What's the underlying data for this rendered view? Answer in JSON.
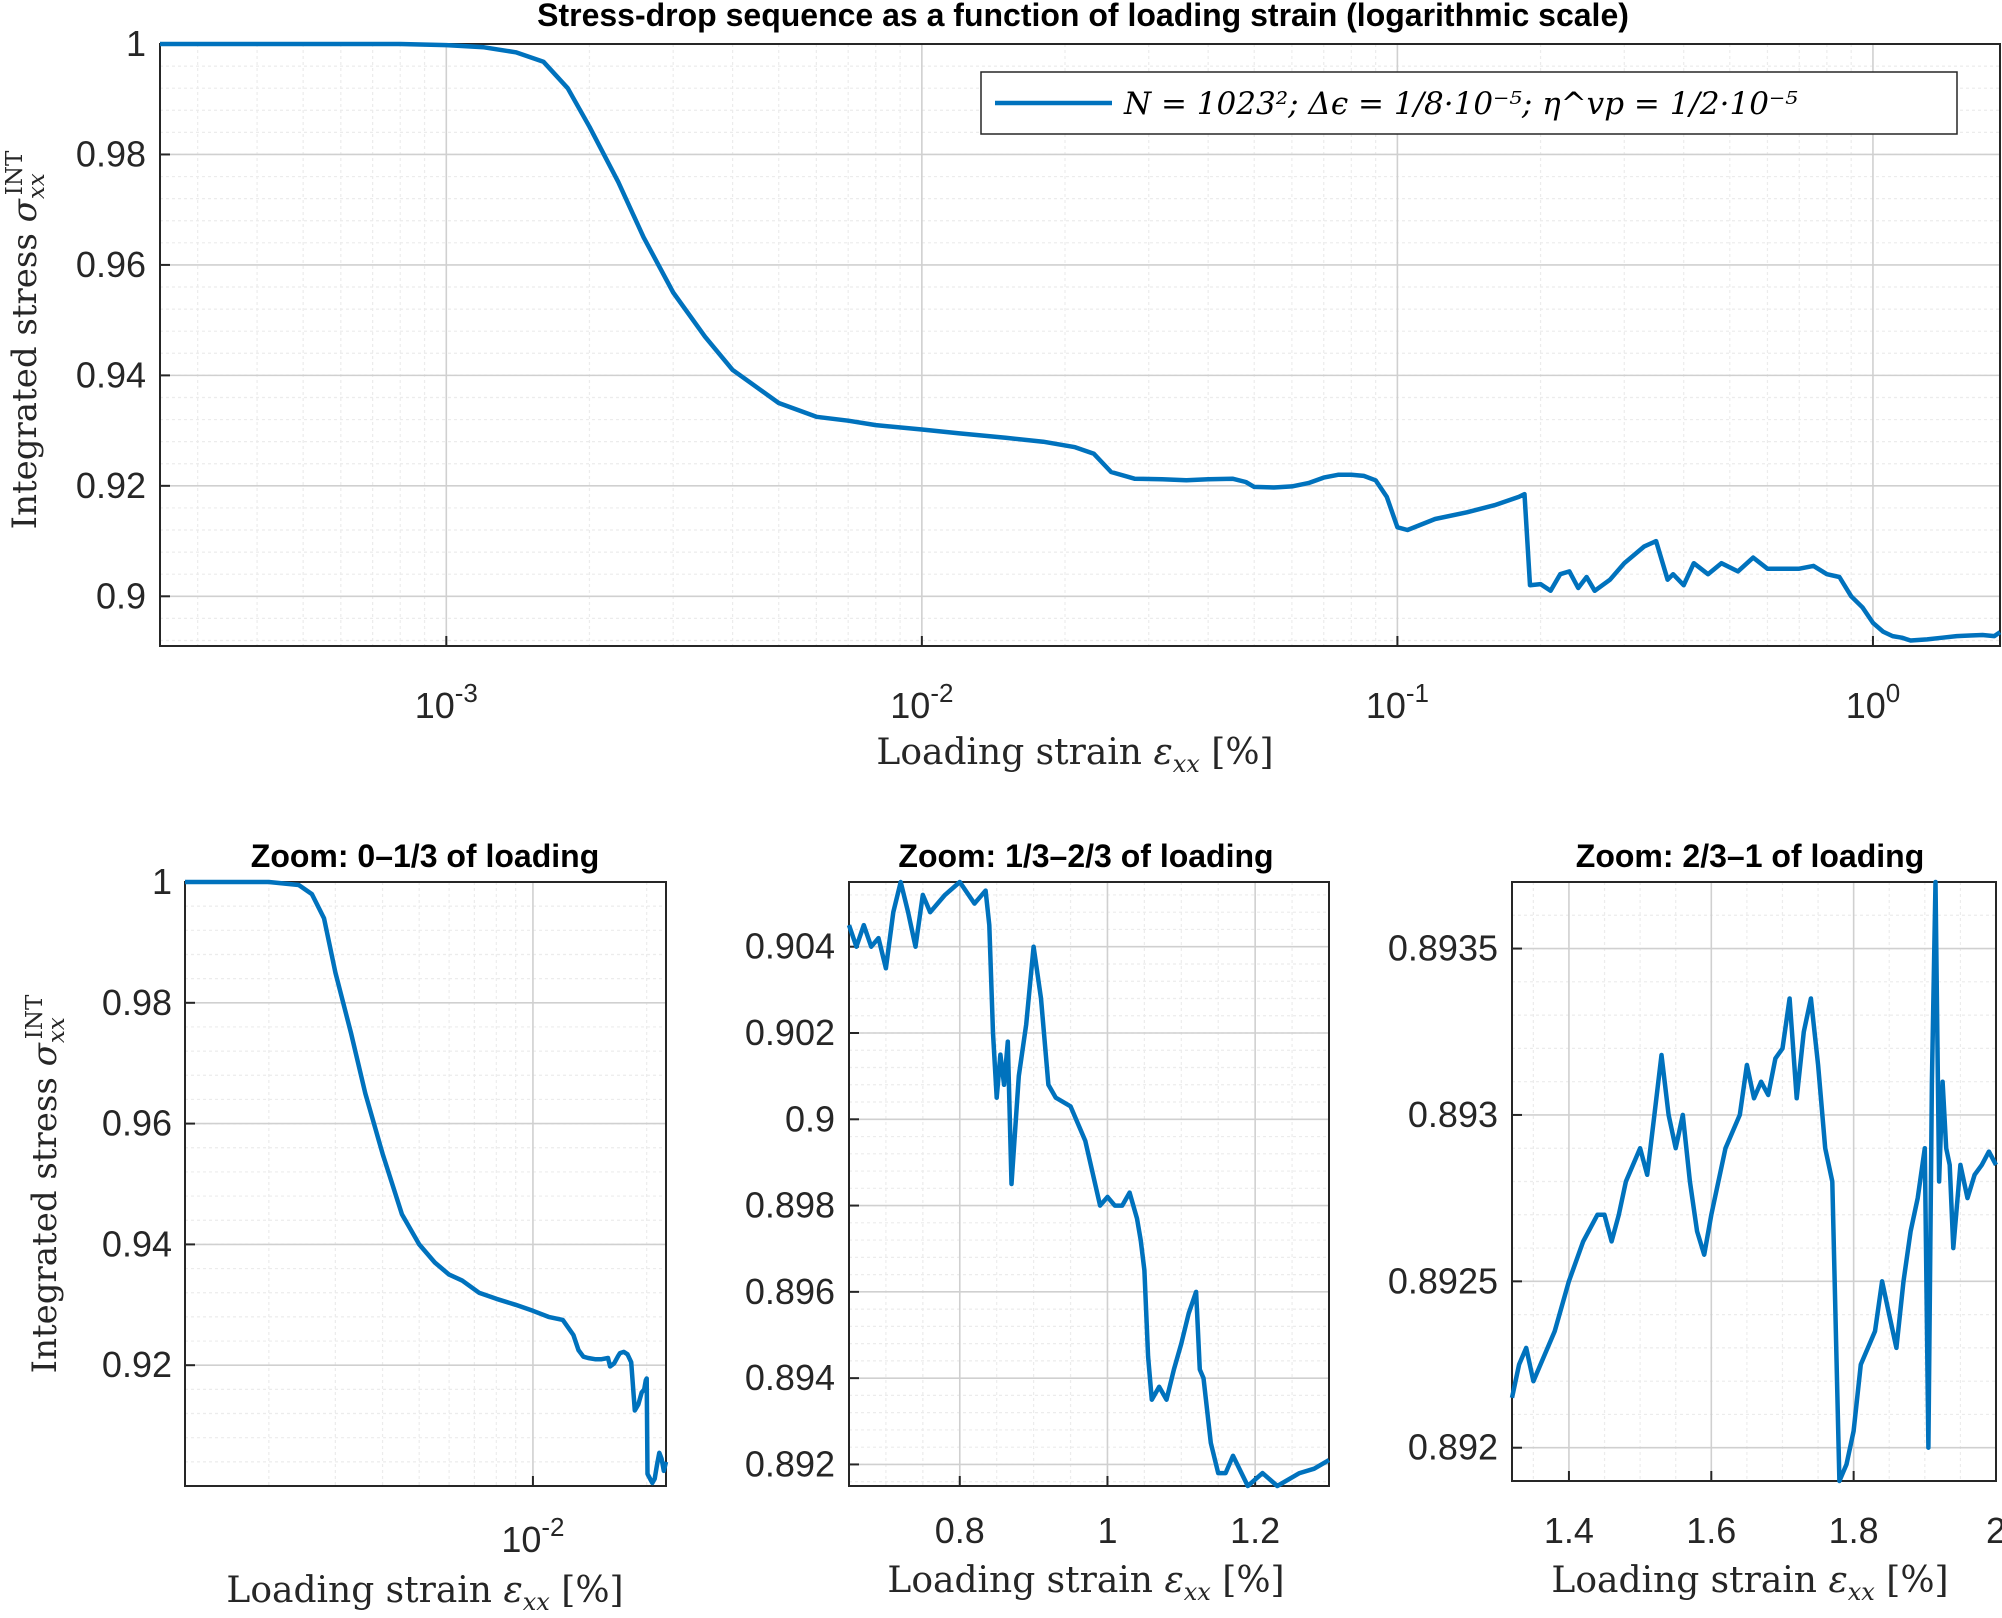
{
  "colors": {
    "line": "#0072BD",
    "axis": "#262626",
    "grid": "#d0d0d0"
  },
  "chart_data": [
    {
      "id": "main",
      "type": "line",
      "title": "Stress-drop sequence as a function of loading strain (logarithmic scale)",
      "xlabel": "Loading strain ε_xx [%]",
      "ylabel": "Integrated stress σ_xx^INT",
      "xscale": "log",
      "xlim": [
        0.00025,
        1.85
      ],
      "ylim": [
        0.891,
        1.0
      ],
      "grid": true,
      "legend_placement": "top-right",
      "xticks": [
        0.001,
        0.01,
        0.1,
        1
      ],
      "xtick_labels": [
        "10-3",
        "10-2",
        "10-1",
        "100"
      ],
      "yticks": [
        0.9,
        0.92,
        0.94,
        0.96,
        0.98,
        1
      ],
      "ytick_labels": [
        "0.9",
        "0.92",
        "0.94",
        "0.96",
        "0.98",
        "1"
      ],
      "series": [
        {
          "name": "N = 1023²; Δϵ = 1/8·10⁻⁵; η^vp = 1/2·10⁻⁵",
          "x": [
            0.00025,
            0.0005,
            0.0008,
            0.001,
            0.0012,
            0.0014,
            0.0016,
            0.0018,
            0.002,
            0.0023,
            0.0026,
            0.003,
            0.0035,
            0.004,
            0.005,
            0.006,
            0.007,
            0.008,
            0.01,
            0.012,
            0.015,
            0.018,
            0.021,
            0.023,
            0.025,
            0.028,
            0.032,
            0.036,
            0.04,
            0.045,
            0.048,
            0.05,
            0.055,
            0.06,
            0.065,
            0.07,
            0.075,
            0.08,
            0.085,
            0.09,
            0.095,
            0.1,
            0.105,
            0.12,
            0.14,
            0.16,
            0.18,
            0.185,
            0.19,
            0.2,
            0.21,
            0.22,
            0.23,
            0.24,
            0.25,
            0.26,
            0.28,
            0.3,
            0.33,
            0.35,
            0.37,
            0.38,
            0.4,
            0.42,
            0.45,
            0.48,
            0.52,
            0.56,
            0.6,
            0.65,
            0.7,
            0.75,
            0.8,
            0.85,
            0.9,
            0.95,
            1.0,
            1.05,
            1.1,
            1.15,
            1.2,
            1.3,
            1.4,
            1.5,
            1.6,
            1.7,
            1.8,
            1.85
          ],
          "y": [
            1.0,
            1.0,
            1.0,
            0.9998,
            0.9994,
            0.9985,
            0.9968,
            0.992,
            0.985,
            0.975,
            0.965,
            0.955,
            0.947,
            0.941,
            0.935,
            0.9325,
            0.9318,
            0.931,
            0.9302,
            0.9295,
            0.9287,
            0.928,
            0.927,
            0.9258,
            0.9225,
            0.9213,
            0.9212,
            0.921,
            0.9212,
            0.9213,
            0.9207,
            0.9198,
            0.9197,
            0.9199,
            0.9205,
            0.9215,
            0.922,
            0.922,
            0.9218,
            0.921,
            0.918,
            0.9125,
            0.912,
            0.914,
            0.9152,
            0.9165,
            0.918,
            0.9185,
            0.902,
            0.9022,
            0.901,
            0.904,
            0.9045,
            0.9015,
            0.9035,
            0.901,
            0.903,
            0.906,
            0.909,
            0.91,
            0.903,
            0.904,
            0.902,
            0.906,
            0.904,
            0.906,
            0.9045,
            0.907,
            0.905,
            0.905,
            0.905,
            0.9055,
            0.904,
            0.9035,
            0.9,
            0.898,
            0.8952,
            0.8936,
            0.8928,
            0.8925,
            0.892,
            0.8922,
            0.8925,
            0.8928,
            0.8929,
            0.893,
            0.8928,
            0.8935
          ]
        }
      ]
    },
    {
      "id": "zoom1",
      "type": "line",
      "title": "Zoom: 0–1/3 of loading",
      "xlabel": "Loading strain ε_xx [%]",
      "ylabel": "Integrated stress σ_xx^INT",
      "xscale": "log",
      "xlim": [
        0.0012,
        0.0225
      ],
      "ylim": [
        0.9,
        1.0
      ],
      "grid": true,
      "xticks": [
        0.01
      ],
      "xtick_labels": [
        "10-2"
      ],
      "yticks": [
        0.92,
        0.94,
        0.96,
        0.98,
        1
      ],
      "ytick_labels": [
        "0.92",
        "0.94",
        "0.96",
        "0.98",
        "1"
      ],
      "series": [
        {
          "x": [
            0.0012,
            0.0015,
            0.002,
            0.0024,
            0.0026,
            0.0028,
            0.003,
            0.0033,
            0.0036,
            0.004,
            0.0045,
            0.005,
            0.0055,
            0.006,
            0.0065,
            0.0072,
            0.008,
            0.009,
            0.01,
            0.011,
            0.012,
            0.0128,
            0.0132,
            0.0136,
            0.014,
            0.0146,
            0.0152,
            0.0158,
            0.016,
            0.0164,
            0.0168,
            0.017,
            0.0174,
            0.0178,
            0.0182,
            0.0186,
            0.019,
            0.0194,
            0.0197,
            0.0199,
            0.02,
            0.0201,
            0.0203,
            0.0205,
            0.0207,
            0.021,
            0.0213,
            0.0216,
            0.0219,
            0.0222,
            0.0225
          ],
          "y": [
            1.0,
            1.0,
            1.0,
            0.9995,
            0.998,
            0.994,
            0.985,
            0.975,
            0.965,
            0.955,
            0.945,
            0.94,
            0.937,
            0.935,
            0.934,
            0.932,
            0.931,
            0.93,
            0.929,
            0.928,
            0.9275,
            0.925,
            0.9225,
            0.9214,
            0.9212,
            0.921,
            0.921,
            0.9212,
            0.9198,
            0.9203,
            0.9215,
            0.922,
            0.9222,
            0.9218,
            0.9205,
            0.9125,
            0.9135,
            0.9155,
            0.916,
            0.9175,
            0.9178,
            0.902,
            0.9015,
            0.901,
            0.9005,
            0.9012,
            0.9035,
            0.9055,
            0.9045,
            0.9025,
            0.904
          ]
        }
      ]
    },
    {
      "id": "zoom2",
      "type": "line",
      "title": "Zoom: 1/3–2/3 of loading",
      "xlabel": "Loading strain ε_xx [%]",
      "ylabel": "",
      "xscale": "linear",
      "xlim": [
        0.65,
        1.3
      ],
      "ylim": [
        0.8915,
        0.9055
      ],
      "grid": true,
      "xticks": [
        0.8,
        1,
        1.2
      ],
      "xtick_labels": [
        "0.8",
        "1",
        "1.2"
      ],
      "yticks": [
        0.892,
        0.894,
        0.896,
        0.898,
        0.9,
        0.902,
        0.904
      ],
      "ytick_labels": [
        "0.892",
        "0.894",
        "0.896",
        "0.898",
        "0.9",
        "0.902",
        "0.904"
      ],
      "series": [
        {
          "x": [
            0.65,
            0.66,
            0.67,
            0.68,
            0.69,
            0.7,
            0.71,
            0.72,
            0.73,
            0.74,
            0.75,
            0.76,
            0.78,
            0.8,
            0.82,
            0.835,
            0.84,
            0.845,
            0.85,
            0.855,
            0.86,
            0.865,
            0.87,
            0.88,
            0.89,
            0.9,
            0.91,
            0.92,
            0.93,
            0.95,
            0.97,
            0.99,
            1.0,
            1.01,
            1.02,
            1.03,
            1.04,
            1.045,
            1.05,
            1.055,
            1.06,
            1.07,
            1.08,
            1.09,
            1.1,
            1.11,
            1.12,
            1.125,
            1.13,
            1.14,
            1.15,
            1.16,
            1.17,
            1.19,
            1.21,
            1.23,
            1.26,
            1.28,
            1.3
          ],
          "y": [
            0.9045,
            0.904,
            0.9045,
            0.904,
            0.9042,
            0.9035,
            0.9048,
            0.9055,
            0.9048,
            0.904,
            0.9052,
            0.9048,
            0.9052,
            0.9055,
            0.905,
            0.9053,
            0.9045,
            0.902,
            0.9005,
            0.9015,
            0.9008,
            0.9018,
            0.8985,
            0.901,
            0.9022,
            0.904,
            0.9028,
            0.9008,
            0.9005,
            0.9003,
            0.8995,
            0.898,
            0.8982,
            0.898,
            0.898,
            0.8983,
            0.8977,
            0.8972,
            0.8965,
            0.8945,
            0.8935,
            0.8938,
            0.8935,
            0.8942,
            0.8948,
            0.8955,
            0.896,
            0.8942,
            0.894,
            0.8925,
            0.8918,
            0.8918,
            0.8922,
            0.8915,
            0.8918,
            0.8915,
            0.8918,
            0.8919,
            0.8921
          ]
        }
      ]
    },
    {
      "id": "zoom3",
      "type": "line",
      "title": "Zoom: 2/3–1 of loading",
      "xlabel": "Loading strain ε_xx [%]",
      "ylabel": "",
      "xscale": "linear",
      "xlim": [
        1.32,
        2.0
      ],
      "ylim": [
        0.8919,
        0.8937
      ],
      "grid": true,
      "xticks": [
        1.4,
        1.6,
        1.8,
        2
      ],
      "xtick_labels": [
        "1.4",
        "1.6",
        "1.8",
        "2"
      ],
      "yticks": [
        0.892,
        0.8925,
        0.893,
        0.8935
      ],
      "ytick_labels": [
        "0.892",
        "0.8925",
        "0.893",
        "0.8935"
      ],
      "series": [
        {
          "x": [
            1.32,
            1.33,
            1.34,
            1.35,
            1.36,
            1.38,
            1.4,
            1.42,
            1.44,
            1.45,
            1.46,
            1.47,
            1.48,
            1.5,
            1.51,
            1.52,
            1.53,
            1.54,
            1.55,
            1.56,
            1.57,
            1.58,
            1.59,
            1.6,
            1.62,
            1.64,
            1.65,
            1.66,
            1.67,
            1.68,
            1.69,
            1.7,
            1.71,
            1.72,
            1.73,
            1.74,
            1.75,
            1.76,
            1.77,
            1.78,
            1.79,
            1.8,
            1.81,
            1.82,
            1.83,
            1.84,
            1.85,
            1.86,
            1.87,
            1.88,
            1.89,
            1.9,
            1.905,
            1.91,
            1.915,
            1.92,
            1.925,
            1.93,
            1.935,
            1.94,
            1.95,
            1.96,
            1.97,
            1.98,
            1.99,
            2.0
          ],
          "y": [
            0.89215,
            0.89225,
            0.8923,
            0.8922,
            0.89225,
            0.89235,
            0.8925,
            0.89262,
            0.8927,
            0.8927,
            0.89262,
            0.8927,
            0.8928,
            0.8929,
            0.89282,
            0.893,
            0.89318,
            0.893,
            0.8929,
            0.893,
            0.8928,
            0.89265,
            0.89258,
            0.8927,
            0.8929,
            0.893,
            0.89315,
            0.89305,
            0.8931,
            0.89306,
            0.89317,
            0.8932,
            0.89335,
            0.89305,
            0.89325,
            0.89335,
            0.89315,
            0.8929,
            0.8928,
            0.8919,
            0.89195,
            0.89205,
            0.89225,
            0.8923,
            0.89235,
            0.8925,
            0.8924,
            0.8923,
            0.8925,
            0.89265,
            0.89275,
            0.8929,
            0.892,
            0.8931,
            0.8937,
            0.8928,
            0.8931,
            0.8929,
            0.89285,
            0.8926,
            0.89285,
            0.89275,
            0.89282,
            0.89285,
            0.89289,
            0.89285
          ]
        }
      ]
    }
  ]
}
